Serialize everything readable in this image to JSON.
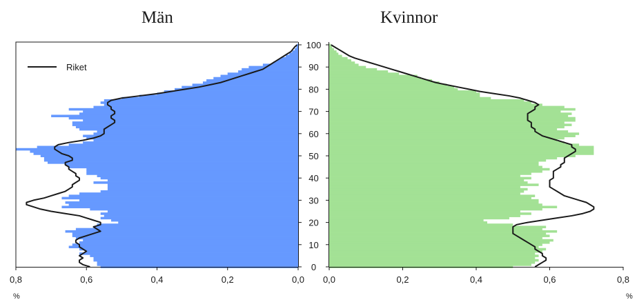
{
  "chart_data": {
    "type": "bar",
    "orientation": "horizontal",
    "panels": [
      {
        "title": "Män",
        "side": "left",
        "color": "#6699ff",
        "xlim": [
          0.8,
          0.0
        ],
        "xticks": [
          "0,8",
          "0,6",
          "0,4",
          "0,2",
          "0,0"
        ],
        "xunit": "%",
        "values": [
          0.56,
          0.57,
          0.57,
          0.58,
          0.58,
          0.59,
          0.62,
          0.6,
          0.62,
          0.65,
          0.64,
          0.62,
          0.61,
          0.63,
          0.64,
          0.64,
          0.66,
          0.63,
          0.58,
          0.57,
          0.51,
          0.53,
          0.56,
          0.55,
          0.56,
          0.54,
          0.59,
          0.67,
          0.65,
          0.66,
          0.62,
          0.67,
          0.65,
          0.62,
          0.56,
          0.54,
          0.54,
          0.54,
          0.58,
          0.54,
          0.56,
          0.57,
          0.6,
          0.6,
          0.6,
          0.65,
          0.66,
          0.71,
          0.72,
          0.72,
          0.73,
          0.75,
          0.76,
          0.8,
          0.74,
          0.65,
          0.61,
          0.58,
          0.6,
          0.61,
          0.58,
          0.57,
          0.62,
          0.63,
          0.64,
          0.64,
          0.61,
          0.65,
          0.7,
          0.62,
          0.61,
          0.65,
          0.58,
          0.55,
          0.56,
          0.55,
          0.5,
          0.45,
          0.4,
          0.38,
          0.35,
          0.33,
          0.3,
          0.27,
          0.26,
          0.24,
          0.22,
          0.2,
          0.17,
          0.16,
          0.14,
          0.1,
          0.07,
          0.06,
          0.05,
          0.035,
          0.025,
          0.017,
          0.01,
          0.005,
          0.003
        ],
        "reference_line": [
          0.59,
          0.61,
          0.62,
          0.62,
          0.61,
          0.62,
          0.61,
          0.6,
          0.61,
          0.62,
          0.62,
          0.63,
          0.63,
          0.62,
          0.6,
          0.58,
          0.56,
          0.57,
          0.58,
          0.56,
          0.56,
          0.58,
          0.6,
          0.62,
          0.66,
          0.7,
          0.73,
          0.75,
          0.77,
          0.77,
          0.75,
          0.72,
          0.7,
          0.68,
          0.66,
          0.65,
          0.64,
          0.64,
          0.63,
          0.62,
          0.62,
          0.63,
          0.63,
          0.64,
          0.65,
          0.65,
          0.66,
          0.66,
          0.64,
          0.64,
          0.65,
          0.67,
          0.68,
          0.69,
          0.69,
          0.68,
          0.65,
          0.61,
          0.58,
          0.56,
          0.55,
          0.55,
          0.55,
          0.54,
          0.53,
          0.52,
          0.52,
          0.53,
          0.53,
          0.52,
          0.52,
          0.53,
          0.53,
          0.54,
          0.54,
          0.53,
          0.5,
          0.45,
          0.4,
          0.36,
          0.32,
          0.28,
          0.25,
          0.22,
          0.2,
          0.18,
          0.16,
          0.14,
          0.12,
          0.1,
          0.09,
          0.08,
          0.07,
          0.06,
          0.05,
          0.04,
          0.03,
          0.02,
          0.015,
          0.01,
          0.003
        ]
      },
      {
        "title": "Kvinnor",
        "side": "right",
        "color": "#a3e195",
        "xlim": [
          0.0,
          0.8
        ],
        "xticks": [
          "0,0",
          "0,2",
          "0,4",
          "0,6",
          "0,8"
        ],
        "xunit": "%",
        "values": [
          0.5,
          0.55,
          0.56,
          0.57,
          0.56,
          0.57,
          0.56,
          0.58,
          0.59,
          0.57,
          0.58,
          0.6,
          0.61,
          0.58,
          0.6,
          0.59,
          0.62,
          0.58,
          0.59,
          0.5,
          0.43,
          0.42,
          0.49,
          0.52,
          0.55,
          0.52,
          0.58,
          0.62,
          0.58,
          0.57,
          0.57,
          0.55,
          0.56,
          0.52,
          0.53,
          0.54,
          0.52,
          0.57,
          0.54,
          0.53,
          0.55,
          0.52,
          0.55,
          0.58,
          0.6,
          0.58,
          0.57,
          0.57,
          0.59,
          0.62,
          0.67,
          0.72,
          0.72,
          0.72,
          0.72,
          0.68,
          0.64,
          0.62,
          0.64,
          0.67,
          0.68,
          0.65,
          0.62,
          0.64,
          0.66,
          0.64,
          0.67,
          0.67,
          0.65,
          0.66,
          0.63,
          0.67,
          0.64,
          0.58,
          0.55,
          0.53,
          0.44,
          0.41,
          0.41,
          0.4,
          0.35,
          0.34,
          0.32,
          0.3,
          0.28,
          0.25,
          0.24,
          0.19,
          0.16,
          0.13,
          0.1,
          0.08,
          0.07,
          0.06,
          0.05,
          0.035,
          0.025,
          0.02,
          0.013,
          0.008,
          0.004
        ],
        "reference_line": [
          0.56,
          0.57,
          0.58,
          0.59,
          0.59,
          0.58,
          0.58,
          0.57,
          0.56,
          0.56,
          0.55,
          0.54,
          0.53,
          0.52,
          0.51,
          0.5,
          0.5,
          0.5,
          0.5,
          0.51,
          0.54,
          0.58,
          0.62,
          0.66,
          0.69,
          0.71,
          0.72,
          0.72,
          0.71,
          0.7,
          0.68,
          0.66,
          0.64,
          0.63,
          0.62,
          0.61,
          0.6,
          0.6,
          0.6,
          0.6,
          0.61,
          0.61,
          0.61,
          0.61,
          0.62,
          0.63,
          0.63,
          0.64,
          0.64,
          0.64,
          0.65,
          0.66,
          0.67,
          0.67,
          0.66,
          0.66,
          0.64,
          0.62,
          0.6,
          0.58,
          0.57,
          0.56,
          0.56,
          0.55,
          0.55,
          0.55,
          0.54,
          0.54,
          0.54,
          0.54,
          0.55,
          0.56,
          0.56,
          0.57,
          0.56,
          0.54,
          0.52,
          0.49,
          0.45,
          0.41,
          0.38,
          0.35,
          0.32,
          0.29,
          0.27,
          0.25,
          0.23,
          0.21,
          0.19,
          0.17,
          0.15,
          0.13,
          0.11,
          0.09,
          0.07,
          0.055,
          0.045,
          0.035,
          0.025,
          0.015,
          0.005
        ]
      }
    ],
    "age_axis": {
      "range": [
        0,
        100
      ],
      "ticks": [
        "0",
        "10",
        "20",
        "30",
        "40",
        "50",
        "60",
        "70",
        "80",
        "90",
        "100"
      ]
    },
    "legend": {
      "label": "Riket",
      "placement": "top-left",
      "color": "#1a1a1a"
    }
  }
}
